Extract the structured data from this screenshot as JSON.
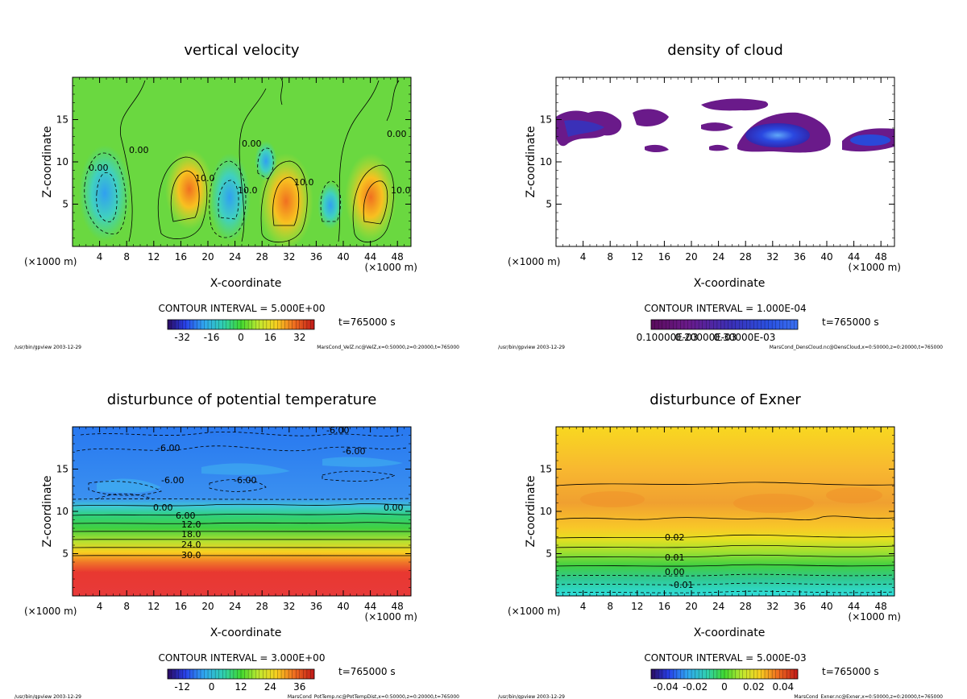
{
  "chart_data": [
    {
      "type": "heatmap",
      "title": "vertical velocity",
      "xlabel": "X-coordinate",
      "ylabel": "Z-coordinate",
      "x_unit_left": "(×1000 m)",
      "x_unit_right": "(×1000 m)",
      "xlim": [
        0,
        50
      ],
      "ylim": [
        0,
        20
      ],
      "xticks": [
        4,
        8,
        12,
        16,
        20,
        24,
        28,
        32,
        36,
        40,
        44,
        48
      ],
      "yticks": [
        5,
        10,
        15
      ],
      "contour_interval": "CONTOUR INTERVAL = 5.000E+00",
      "time": "t=765000 s",
      "colorbar_ticks": [
        "-32",
        "-16",
        "0",
        "16",
        "32"
      ],
      "colorbar": "rainbow",
      "contour_labels": [
        "0.00",
        "0.00",
        "0.00",
        "10.0",
        "10.0",
        "10.0",
        "10.0",
        "0.00"
      ],
      "footer_left": "/usr/bin/gpview  2003-12-29",
      "footer_right": "MarsCond_VelZ.nc@VelZ,x=0:50000,z=0:20000,t=765000"
    },
    {
      "type": "heatmap",
      "title": "density of cloud",
      "xlabel": "X-coordinate",
      "ylabel": "Z-coordinate",
      "x_unit_left": "(×1000 m)",
      "x_unit_right": "(×1000 m)",
      "xlim": [
        0,
        50
      ],
      "ylim": [
        0,
        20
      ],
      "xticks": [
        4,
        8,
        12,
        16,
        20,
        24,
        28,
        32,
        36,
        40,
        44,
        48
      ],
      "yticks": [
        5,
        10,
        15
      ],
      "contour_interval": "CONTOUR INTERVAL = 1.000E-04",
      "time": "t=765000 s",
      "colorbar_ticks": [
        "0.10000E-03",
        "0.20000E-03",
        "0.30000E-03"
      ],
      "colorbar": "cloud",
      "footer_left": "/usr/bin/gpview  2003-12-29",
      "footer_right": "MarsCond_DensCloud.nc@DensCloud,x=0:50000,z=0:20000,t=765000"
    },
    {
      "type": "heatmap",
      "title": "disturbunce of potential temperature",
      "xlabel": "X-coordinate",
      "ylabel": "Z-coordinate",
      "x_unit_left": "(×1000 m)",
      "x_unit_right": "(×1000 m)",
      "xlim": [
        0,
        50
      ],
      "ylim": [
        0,
        20
      ],
      "xticks": [
        4,
        8,
        12,
        16,
        20,
        24,
        28,
        32,
        36,
        40,
        44,
        48
      ],
      "yticks": [
        5,
        10,
        15
      ],
      "contour_interval": "CONTOUR INTERVAL = 3.000E+00",
      "time": "t=765000 s",
      "colorbar_ticks": [
        "-12",
        "0",
        "12",
        "24",
        "36"
      ],
      "colorbar": "rainbow",
      "contour_labels": [
        "-6.00",
        "-6.00",
        "-6.00",
        "-6.00",
        "-6.00",
        "0.00",
        "0.00",
        "6.00",
        "12.0",
        "18.0",
        "24.0",
        "30.0"
      ],
      "footer_left": "/usr/bin/gpview  2003-12-29",
      "footer_right": "MarsCond_PotTemp.nc@PotTempDist,x=0:50000,z=0:20000,t=765000"
    },
    {
      "type": "heatmap",
      "title": "disturbunce of Exner",
      "xlabel": "X-coordinate",
      "ylabel": "Z-coordinate",
      "x_unit_left": "(×1000 m)",
      "x_unit_right": "(×1000 m)",
      "xlim": [
        0,
        50
      ],
      "ylim": [
        0,
        20
      ],
      "xticks": [
        4,
        8,
        12,
        16,
        20,
        24,
        28,
        32,
        36,
        40,
        44,
        48
      ],
      "yticks": [
        5,
        10,
        15
      ],
      "contour_interval": "CONTOUR INTERVAL = 5.000E-03",
      "time": "t=765000 s",
      "colorbar_ticks": [
        "-0.04",
        "-0.02",
        "0",
        "0.02",
        "0.04"
      ],
      "colorbar": "rainbow",
      "contour_labels": [
        "0.02",
        "0.01",
        "0.00",
        "-0.01"
      ],
      "footer_left": "/usr/bin/gpview  2003-12-29",
      "footer_right": "MarsCond_Exner.nc@Exner,x=0:50000,z=0:20000,t=765000"
    }
  ]
}
